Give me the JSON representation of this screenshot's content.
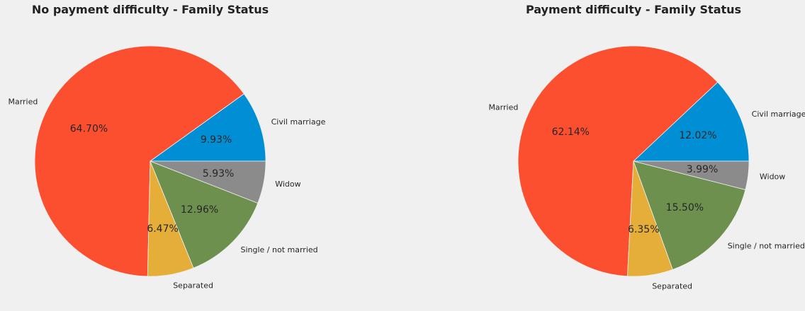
{
  "colors": [
    "#008fd5",
    "#fc4f30",
    "#e5ae38",
    "#6d904f",
    "#8b8b8b"
  ],
  "chart_data": [
    {
      "type": "pie",
      "title": "No payment difficulty - Family Status",
      "start_angle_deg": 0,
      "direction": "counterclockwise",
      "slices": [
        {
          "label": "Civil marriage",
          "value": 9.93,
          "pct_text": "9.93%"
        },
        {
          "label": "Married",
          "value": 64.7,
          "pct_text": "64.70%"
        },
        {
          "label": "Separated",
          "value": 6.47,
          "pct_text": "6.47%"
        },
        {
          "label": "Single / not married",
          "value": 12.96,
          "pct_text": "12.96%"
        },
        {
          "label": "Widow",
          "value": 5.93,
          "pct_text": "5.93%"
        }
      ]
    },
    {
      "type": "pie",
      "title": "Payment difficulty - Family Status",
      "start_angle_deg": 0,
      "direction": "counterclockwise",
      "slices": [
        {
          "label": "Civil marriage",
          "value": 12.02,
          "pct_text": "12.02%"
        },
        {
          "label": "Married",
          "value": 62.14,
          "pct_text": "62.14%"
        },
        {
          "label": "Separated",
          "value": 6.35,
          "pct_text": "6.35%"
        },
        {
          "label": "Single / not married",
          "value": 15.5,
          "pct_text": "15.50%"
        },
        {
          "label": "Widow",
          "value": 3.99,
          "pct_text": "3.99%"
        }
      ]
    }
  ]
}
